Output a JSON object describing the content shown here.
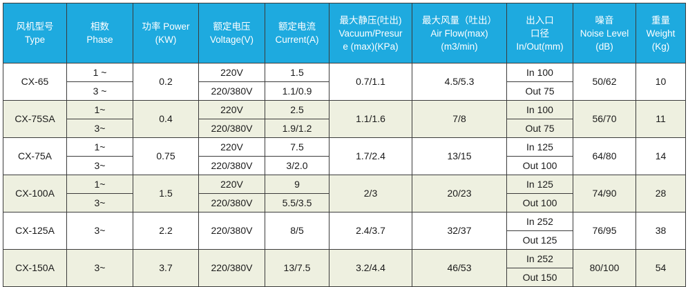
{
  "header": {
    "type": [
      "风机型号",
      "Type"
    ],
    "phase": [
      "相数",
      "Phase"
    ],
    "power": [
      "功率 Power",
      "(KW)"
    ],
    "voltage": [
      "额定电压",
      "Voltage(V)"
    ],
    "current": [
      "额定电流",
      "Current(A)"
    ],
    "vacuum": [
      "最大静压(吐出)",
      "Vacuum/Presur",
      "e (max)(KPa)"
    ],
    "airflow": [
      "最大风量（吐出）",
      "Air Flow(max)",
      "(m3/min)"
    ],
    "inout": [
      "出入口",
      "口径",
      "In/Out(mm)"
    ],
    "noise": [
      "噪音",
      "Noise Level",
      "(dB)"
    ],
    "weight": [
      "重量",
      "Weight",
      "(Kg)"
    ]
  },
  "models": [
    {
      "type": "CX-65",
      "phase": [
        "1 ~",
        "3 ~"
      ],
      "power": "0.2",
      "voltage": [
        "220V",
        "220/380V"
      ],
      "current": [
        "1.5",
        "1.1/0.9"
      ],
      "vacuum": "0.7/1.1",
      "airflow": "4.5/5.3",
      "inout": [
        "In 100",
        "Out 75"
      ],
      "noise": "50/62",
      "weight": "10"
    },
    {
      "type": "CX-75SA",
      "phase": [
        "1~",
        "3~"
      ],
      "power": "0.4",
      "voltage": [
        "220V",
        "220/380V"
      ],
      "current": [
        "2.5",
        "1.9/1.2"
      ],
      "vacuum": "1.1/1.6",
      "airflow": "7/8",
      "inout": [
        "In 100",
        "Out 75"
      ],
      "noise": "56/70",
      "weight": "11"
    },
    {
      "type": "CX-75A",
      "phase": [
        "1~",
        "3~"
      ],
      "power": "0.75",
      "voltage": [
        "220V",
        "220/380V"
      ],
      "current": [
        "7.5",
        "3/2.0"
      ],
      "vacuum": "1.7/2.4",
      "airflow": "13/15",
      "inout": [
        "In 125",
        "Out 100"
      ],
      "noise": "64/80",
      "weight": "14"
    },
    {
      "type": "CX-100A",
      "phase": [
        "1~",
        "3~"
      ],
      "power": "1.5",
      "voltage": [
        "220V",
        "220/380V"
      ],
      "current": [
        "9",
        "5.5/3.5"
      ],
      "vacuum": "2/3",
      "airflow": "20/23",
      "inout": [
        "In 125",
        "Out 100"
      ],
      "noise": "74/90",
      "weight": "28"
    },
    {
      "type": "CX-125A",
      "phase": [
        "3~"
      ],
      "power": "2.2",
      "voltage": [
        "220/380V"
      ],
      "current": [
        "8/5"
      ],
      "vacuum": "2.4/3.7",
      "airflow": "32/37",
      "inout": [
        "In 252",
        "Out 125"
      ],
      "noise": "76/95",
      "weight": "38"
    },
    {
      "type": "CX-150A",
      "phase": [
        "3~"
      ],
      "power": "3.7",
      "voltage": [
        "220/380V"
      ],
      "current": [
        "13/7.5"
      ],
      "vacuum": "3.2/4.4",
      "airflow": "46/53",
      "inout": [
        "In 252",
        "Out 150"
      ],
      "noise": "80/100",
      "weight": "54"
    }
  ]
}
